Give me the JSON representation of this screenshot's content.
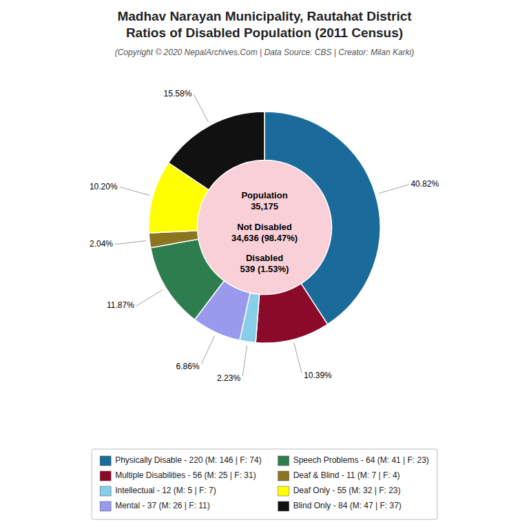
{
  "chart_data": {
    "type": "pie",
    "title": [
      "Madhav Narayan Municipality, Rautahat District",
      "Ratios of Disabled Population (2011 Census)"
    ],
    "subtitle": "(Copyright © 2020 NepalArchives.Com | Data Source: CBS | Creator: Milan Karki)",
    "categories": [
      "Physically Disable - 220 (M: 146 | F: 74)",
      "Multiple Disabilities - 56 (M: 25 | F: 31)",
      "Intellectual - 12 (M: 5 | F: 7)",
      "Mental - 37 (M: 26 | F: 11)",
      "Speech Problems - 64 (M: 41 | F: 23)",
      "Deaf & Blind - 11 (M: 7 | F: 4)",
      "Deaf Only - 55 (M: 32 | F: 23)",
      "Blind Only - 84 (M: 47 | F: 37)"
    ],
    "values": [
      40.82,
      10.39,
      2.23,
      6.86,
      11.87,
      2.04,
      10.2,
      15.58
    ],
    "value_labels": [
      "40.82%",
      "10.39%",
      "2.23%",
      "6.86%",
      "11.87%",
      "2.04%",
      "10.20%",
      "15.58%"
    ],
    "colors": [
      "#1a6b9a",
      "#8b0a2a",
      "#87ceeb",
      "#9999ee",
      "#2e7d4f",
      "#8b7520",
      "#ffff00",
      "#111111"
    ],
    "data_labels": true,
    "legend": "bottom",
    "annotations": [
      [
        "Population",
        "35,175"
      ],
      [
        "Not Disabled",
        "34,636 (98.47%)"
      ],
      [
        "Disabled",
        "539 (1.53%)"
      ]
    ]
  }
}
